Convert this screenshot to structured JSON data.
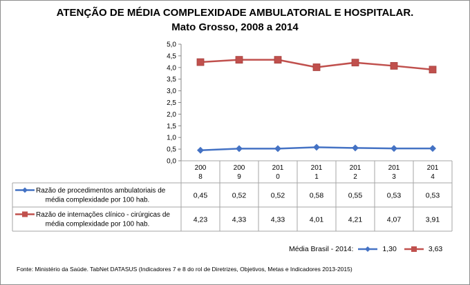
{
  "chart_data": {
    "type": "line",
    "title": "ATENÇÃO DE MÉDIA COMPLEXIDADE AMBULATORIAL E HOSPITALAR.",
    "subtitle": "Mato Grosso, 2008 a 2014",
    "categories": [
      "2008",
      "2009",
      "2010",
      "2011",
      "2012",
      "2013",
      "2014"
    ],
    "category_labels": [
      [
        "200",
        "8"
      ],
      [
        "200",
        "9"
      ],
      [
        "201",
        "0"
      ],
      [
        "201",
        "1"
      ],
      [
        "201",
        "2"
      ],
      [
        "201",
        "3"
      ],
      [
        "201",
        "4"
      ]
    ],
    "series": [
      {
        "name": "Razão de procedimentos ambulatoriais de média complexidade por 100 hab.",
        "name_lines": [
          "Razão de procedimentos ambulatoriais de",
          "média complexidade por 100 hab."
        ],
        "color": "#4472c4",
        "marker": "diamond",
        "values": [
          0.45,
          0.52,
          0.52,
          0.58,
          0.55,
          0.53,
          0.53
        ],
        "labels": [
          "0,45",
          "0,52",
          "0,52",
          "0,58",
          "0,55",
          "0,53",
          "0,53"
        ]
      },
      {
        "name": "Razão de internações clínico - cirúrgicas de média complexidade por 100 hab.",
        "name_lines": [
          "Razão de internações clínico - cirúrgicas de",
          "média complexidade por 100 hab."
        ],
        "color": "#c0504d",
        "marker": "square",
        "values": [
          4.23,
          4.33,
          4.33,
          4.01,
          4.21,
          4.07,
          3.91
        ],
        "labels": [
          "4,23",
          "4,33",
          "4,33",
          "4,01",
          "4,21",
          "4,07",
          "3,91"
        ]
      }
    ],
    "ylim": [
      0,
      5
    ],
    "yticks": [
      0,
      0.5,
      1,
      1.5,
      2,
      2.5,
      3,
      3.5,
      4,
      4.5,
      5
    ],
    "ytick_labels": [
      "0,0",
      "0,5",
      "1,0",
      "1,5",
      "2,0",
      "2,5",
      "3,0",
      "3,5",
      "4,0",
      "4,5",
      "5,0"
    ],
    "grid": false,
    "data_table": true,
    "xlabel": "",
    "ylabel": "",
    "legend": "in data table (left)"
  },
  "brazil_average": {
    "label": "Média Brasil - 2014:",
    "values": [
      {
        "series": "ambulatoriais",
        "value": "1,30",
        "color": "#4472c4"
      },
      {
        "series": "internacoes",
        "value": "3,63",
        "color": "#c0504d"
      }
    ]
  },
  "source": "Fonte: Ministério da Saúde. TabNet DATASUS (Indicadores 7 e 8 do rol de Diretrizes, Objetivos, Metas e Indicadores 2013-2015)"
}
